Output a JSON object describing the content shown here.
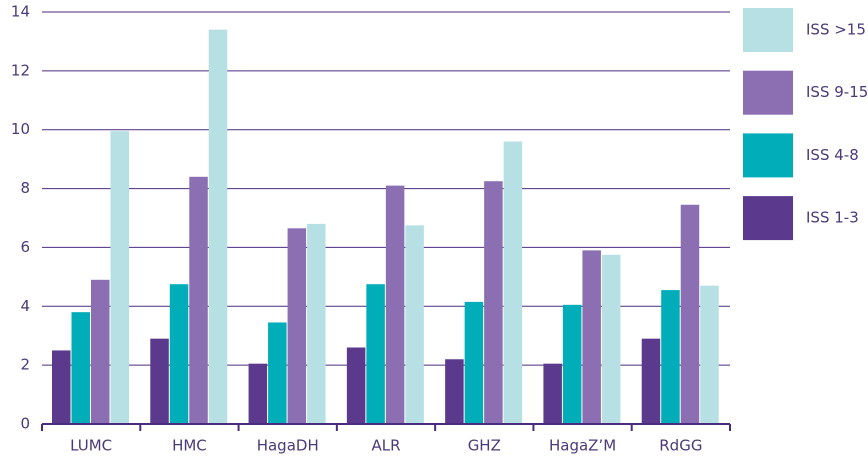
{
  "chart_data": {
    "type": "bar",
    "categories": [
      "LUMC",
      "HMC",
      "HagaDH",
      "ALR",
      "GHZ",
      "HagaZ’M",
      "RdGG"
    ],
    "series": [
      {
        "name": "ISS 1-3",
        "color": "#5b3a8e",
        "values": [
          2.5,
          2.9,
          2.05,
          2.6,
          2.2,
          2.05,
          2.9
        ]
      },
      {
        "name": "ISS 4-8",
        "color": "#00adb9",
        "values": [
          3.8,
          4.75,
          3.45,
          4.75,
          4.15,
          4.05,
          4.55
        ]
      },
      {
        "name": "ISS 9-15",
        "color": "#8b6fb2",
        "values": [
          4.9,
          8.4,
          6.65,
          8.1,
          8.25,
          5.9,
          7.45
        ]
      },
      {
        "name": "ISS >15",
        "color": "#b6e0e3",
        "values": [
          9.95,
          13.4,
          6.8,
          6.75,
          9.6,
          5.75,
          4.7
        ]
      }
    ],
    "ylim": [
      0,
      14
    ],
    "yticks": [
      0,
      2,
      4,
      6,
      8,
      10,
      12,
      14
    ],
    "grid": true,
    "legend": "right"
  }
}
